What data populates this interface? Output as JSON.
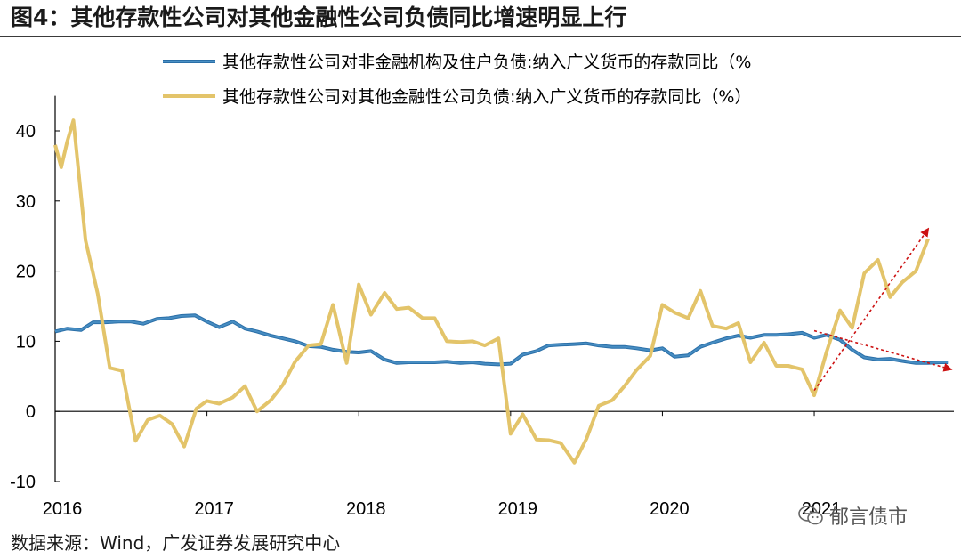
{
  "title": "图4：其他存款性公司对其他金融性公司负债同比增速明显上行",
  "source": "数据来源：Wind，广发证券发展研究中心",
  "watermark": "郁言债市",
  "colors": {
    "series_blue": "#4a90c4",
    "series_gold": "#e3c46a",
    "arrow": "#cc1111"
  },
  "chart_data": {
    "type": "line",
    "title": "",
    "xlabel": "",
    "ylabel": "",
    "ylim": [
      -10,
      45
    ],
    "yticks": [
      -10,
      0,
      10,
      20,
      30,
      40
    ],
    "xlim": [
      2016.0,
      2021.92
    ],
    "xticks": [
      {
        "label": "2016",
        "value": 2016.0
      },
      {
        "label": "2017",
        "value": 2017.0
      },
      {
        "label": "2018",
        "value": 2018.0
      },
      {
        "label": "2019",
        "value": 2019.0
      },
      {
        "label": "2020",
        "value": 2020.0
      },
      {
        "label": "2021",
        "value": 2021.0
      }
    ],
    "legend_position": "top",
    "series": [
      {
        "name": "其他存款性公司对非金融机构及住户负债:纳入广义货币的存款同比（%",
        "color": "#4a90c4",
        "values": [
          [
            2016.0,
            11.4
          ],
          [
            2016.08,
            11.8
          ],
          [
            2016.17,
            11.6
          ],
          [
            2016.25,
            12.7
          ],
          [
            2016.33,
            12.7
          ],
          [
            2016.42,
            12.8
          ],
          [
            2016.5,
            12.8
          ],
          [
            2016.58,
            12.5
          ],
          [
            2016.67,
            13.2
          ],
          [
            2016.75,
            13.3
          ],
          [
            2016.83,
            13.6
          ],
          [
            2016.92,
            13.7
          ],
          [
            2017.0,
            12.8
          ],
          [
            2017.08,
            12.0
          ],
          [
            2017.17,
            12.8
          ],
          [
            2017.25,
            11.8
          ],
          [
            2017.33,
            11.4
          ],
          [
            2017.42,
            10.8
          ],
          [
            2017.5,
            10.4
          ],
          [
            2017.58,
            10.0
          ],
          [
            2017.67,
            9.3
          ],
          [
            2017.75,
            9.2
          ],
          [
            2017.83,
            8.8
          ],
          [
            2017.92,
            8.5
          ],
          [
            2018.0,
            8.4
          ],
          [
            2018.08,
            8.6
          ],
          [
            2018.17,
            7.4
          ],
          [
            2018.25,
            6.9
          ],
          [
            2018.33,
            7.0
          ],
          [
            2018.42,
            7.0
          ],
          [
            2018.5,
            7.0
          ],
          [
            2018.58,
            7.1
          ],
          [
            2018.67,
            6.9
          ],
          [
            2018.75,
            7.0
          ],
          [
            2018.83,
            6.8
          ],
          [
            2018.92,
            6.7
          ],
          [
            2019.0,
            6.8
          ],
          [
            2019.08,
            8.1
          ],
          [
            2019.17,
            8.6
          ],
          [
            2019.25,
            9.4
          ],
          [
            2019.33,
            9.5
          ],
          [
            2019.42,
            9.6
          ],
          [
            2019.5,
            9.7
          ],
          [
            2019.58,
            9.4
          ],
          [
            2019.67,
            9.2
          ],
          [
            2019.75,
            9.2
          ],
          [
            2019.83,
            9.0
          ],
          [
            2019.92,
            8.7
          ],
          [
            2020.0,
            9.0
          ],
          [
            2020.08,
            7.8
          ],
          [
            2020.17,
            8.0
          ],
          [
            2020.25,
            9.2
          ],
          [
            2020.33,
            9.8
          ],
          [
            2020.42,
            10.4
          ],
          [
            2020.5,
            10.8
          ],
          [
            2020.58,
            10.5
          ],
          [
            2020.67,
            10.9
          ],
          [
            2020.75,
            10.9
          ],
          [
            2020.83,
            11.0
          ],
          [
            2020.92,
            11.2
          ],
          [
            2021.0,
            10.5
          ],
          [
            2021.08,
            10.9
          ],
          [
            2021.17,
            10.2
          ],
          [
            2021.25,
            8.8
          ],
          [
            2021.33,
            7.7
          ],
          [
            2021.42,
            7.4
          ],
          [
            2021.5,
            7.5
          ],
          [
            2021.58,
            7.2
          ],
          [
            2021.67,
            6.9
          ],
          [
            2021.75,
            6.9
          ],
          [
            2021.83,
            7.0
          ],
          [
            2021.88,
            7.0
          ]
        ]
      },
      {
        "name": "其他存款性公司对其他金融性公司负债:纳入广义货币的存款同比（%）",
        "color": "#e3c46a",
        "values": [
          [
            2016.0,
            38.0
          ],
          [
            2016.04,
            34.8
          ],
          [
            2016.08,
            38.5
          ],
          [
            2016.12,
            41.5
          ],
          [
            2016.2,
            24.4
          ],
          [
            2016.28,
            16.8
          ],
          [
            2016.36,
            6.2
          ],
          [
            2016.44,
            5.8
          ],
          [
            2016.53,
            -4.2
          ],
          [
            2016.61,
            -1.2
          ],
          [
            2016.69,
            -0.6
          ],
          [
            2016.77,
            -1.8
          ],
          [
            2016.85,
            -5.0
          ],
          [
            2016.93,
            0.4
          ],
          [
            2017.0,
            1.5
          ],
          [
            2017.08,
            1.1
          ],
          [
            2017.17,
            2.0
          ],
          [
            2017.25,
            3.6
          ],
          [
            2017.33,
            0.0
          ],
          [
            2017.42,
            1.6
          ],
          [
            2017.5,
            3.8
          ],
          [
            2017.58,
            7.1
          ],
          [
            2017.67,
            9.4
          ],
          [
            2017.75,
            9.6
          ],
          [
            2017.83,
            15.2
          ],
          [
            2017.92,
            6.9
          ],
          [
            2018.0,
            18.1
          ],
          [
            2018.08,
            13.8
          ],
          [
            2018.17,
            16.9
          ],
          [
            2018.25,
            14.6
          ],
          [
            2018.33,
            14.8
          ],
          [
            2018.42,
            13.3
          ],
          [
            2018.5,
            13.3
          ],
          [
            2018.58,
            10.0
          ],
          [
            2018.67,
            9.9
          ],
          [
            2018.75,
            10.0
          ],
          [
            2018.83,
            9.4
          ],
          [
            2018.92,
            10.4
          ],
          [
            2019.0,
            -3.2
          ],
          [
            2019.08,
            -0.4
          ],
          [
            2019.17,
            -4.0
          ],
          [
            2019.25,
            -4.1
          ],
          [
            2019.33,
            -4.5
          ],
          [
            2019.42,
            -7.3
          ],
          [
            2019.5,
            -3.9
          ],
          [
            2019.58,
            0.8
          ],
          [
            2019.67,
            1.6
          ],
          [
            2019.75,
            3.6
          ],
          [
            2019.83,
            5.9
          ],
          [
            2019.92,
            7.9
          ],
          [
            2020.0,
            15.2
          ],
          [
            2020.08,
            14.1
          ],
          [
            2020.17,
            13.3
          ],
          [
            2020.25,
            17.2
          ],
          [
            2020.33,
            12.2
          ],
          [
            2020.42,
            11.8
          ],
          [
            2020.5,
            12.6
          ],
          [
            2020.58,
            7.0
          ],
          [
            2020.67,
            9.8
          ],
          [
            2020.75,
            6.5
          ],
          [
            2020.83,
            6.5
          ],
          [
            2020.92,
            6.0
          ],
          [
            2021.0,
            2.3
          ],
          [
            2021.08,
            8.4
          ],
          [
            2021.17,
            14.4
          ],
          [
            2021.25,
            11.9
          ],
          [
            2021.33,
            19.7
          ],
          [
            2021.42,
            21.6
          ],
          [
            2021.5,
            16.3
          ],
          [
            2021.58,
            18.4
          ],
          [
            2021.67,
            20.0
          ],
          [
            2021.75,
            24.6
          ]
        ]
      }
    ],
    "annotations": [
      {
        "type": "arrow",
        "color": "#cc1111",
        "from": [
          2021.0,
          3.0
        ],
        "to": [
          2021.75,
          26.0
        ],
        "meaning": "rising"
      },
      {
        "type": "arrow",
        "color": "#cc1111",
        "from": [
          2021.0,
          11.5
        ],
        "to": [
          2021.9,
          6.0
        ],
        "meaning": "falling"
      }
    ]
  }
}
